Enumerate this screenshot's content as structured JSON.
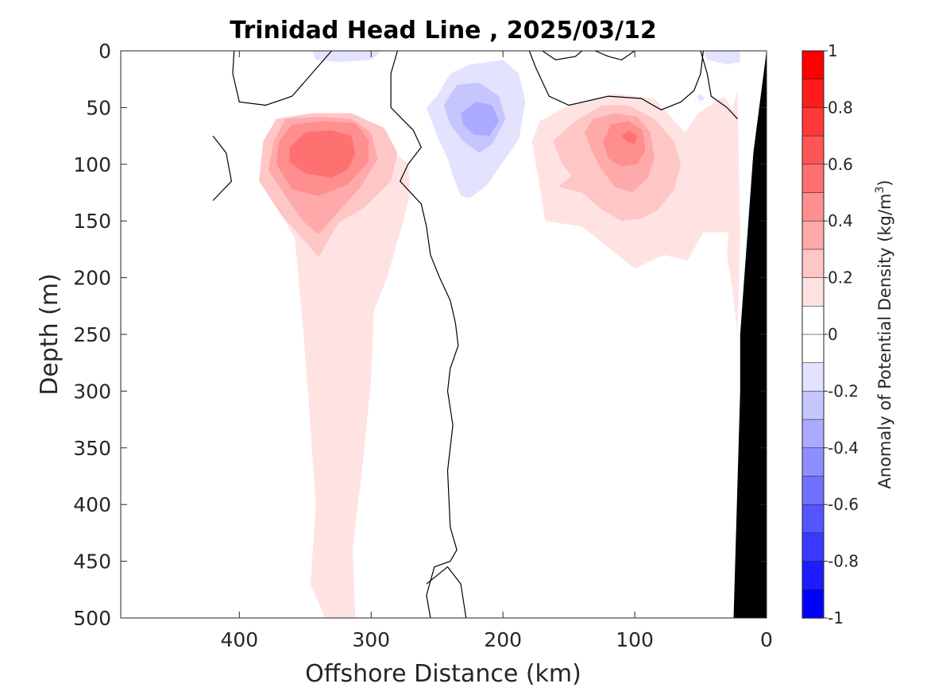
{
  "chart_data": {
    "type": "heatmap",
    "title": "Trinidad Head Line , 2025/03/12",
    "xlabel": "Offshore Distance (km)",
    "ylabel": "Depth (m)",
    "xlim": [
      490,
      0
    ],
    "ylim": [
      0,
      500
    ],
    "x_ticks": [
      400,
      300,
      200,
      100,
      0
    ],
    "y_ticks": [
      0,
      50,
      100,
      150,
      200,
      250,
      300,
      350,
      400,
      450,
      500
    ],
    "grid": false,
    "colorbar": {
      "label_main": "Anomaly of Potential Density (kg/m",
      "label_sup": "3",
      "label_close": ")",
      "range": [
        -1,
        1
      ],
      "ticks": [
        1,
        0.8,
        0.6,
        0.4,
        0.2,
        0,
        -0.2,
        -0.4,
        -0.6,
        -0.8,
        -1
      ],
      "levels": [
        {
          "lo": 0.9,
          "hi": 1.0,
          "color": "#ff0000"
        },
        {
          "lo": 0.8,
          "hi": 0.9,
          "color": "#ff1c1c"
        },
        {
          "lo": 0.7,
          "hi": 0.8,
          "color": "#ff3939"
        },
        {
          "lo": 0.6,
          "hi": 0.7,
          "color": "#ff5555"
        },
        {
          "lo": 0.5,
          "hi": 0.6,
          "color": "#ff7171"
        },
        {
          "lo": 0.4,
          "hi": 0.5,
          "color": "#ff8e8e"
        },
        {
          "lo": 0.3,
          "hi": 0.4,
          "color": "#ffaaaa"
        },
        {
          "lo": 0.2,
          "hi": 0.3,
          "color": "#ffc6c6"
        },
        {
          "lo": 0.1,
          "hi": 0.2,
          "color": "#ffe3e3"
        },
        {
          "lo": 0.0,
          "hi": 0.1,
          "color": "#ffffff"
        },
        {
          "lo": -0.1,
          "hi": 0.0,
          "color": "#ffffff"
        },
        {
          "lo": -0.2,
          "hi": -0.1,
          "color": "#e3e3ff"
        },
        {
          "lo": -0.3,
          "hi": -0.2,
          "color": "#c6c6ff"
        },
        {
          "lo": -0.4,
          "hi": -0.3,
          "color": "#aaaaff"
        },
        {
          "lo": -0.5,
          "hi": -0.4,
          "color": "#8e8eff"
        },
        {
          "lo": -0.6,
          "hi": -0.5,
          "color": "#7171ff"
        },
        {
          "lo": -0.7,
          "hi": -0.6,
          "color": "#5555ff"
        },
        {
          "lo": -0.8,
          "hi": -0.7,
          "color": "#3939ff"
        },
        {
          "lo": -0.9,
          "hi": -0.8,
          "color": "#1c1cff"
        },
        {
          "lo": -1.0,
          "hi": -0.9,
          "color": "#0000ff"
        }
      ]
    },
    "contour_regions": [
      {
        "value": 0.15,
        "points": [
          [
            375,
            130
          ],
          [
            358,
            165
          ],
          [
            352,
            240
          ],
          [
            348,
            300
          ],
          [
            342,
            400
          ],
          [
            346,
            470
          ],
          [
            335,
            500
          ],
          [
            312,
            500
          ],
          [
            314,
            440
          ],
          [
            306,
            360
          ],
          [
            300,
            290
          ],
          [
            298,
            230
          ],
          [
            288,
            200
          ],
          [
            278,
            160
          ],
          [
            270,
            125
          ],
          [
            272,
            100
          ],
          [
            292,
            80
          ],
          [
            315,
            60
          ],
          [
            345,
            60
          ],
          [
            368,
            80
          ],
          [
            378,
            100
          ]
        ]
      },
      {
        "value": 0.25,
        "points": [
          [
            382,
            80
          ],
          [
            372,
            60
          ],
          [
            345,
            55
          ],
          [
            315,
            55
          ],
          [
            290,
            68
          ],
          [
            280,
            90
          ],
          [
            285,
            115
          ],
          [
            305,
            138
          ],
          [
            325,
            152
          ],
          [
            340,
            182
          ],
          [
            350,
            168
          ],
          [
            368,
            145
          ],
          [
            385,
            115
          ]
        ]
      },
      {
        "value": 0.35,
        "points": [
          [
            374,
            80
          ],
          [
            365,
            60
          ],
          [
            340,
            58
          ],
          [
            315,
            60
          ],
          [
            300,
            72
          ],
          [
            295,
            95
          ],
          [
            308,
            120
          ],
          [
            325,
            142
          ],
          [
            340,
            162
          ],
          [
            352,
            150
          ],
          [
            365,
            128
          ],
          [
            378,
            105
          ]
        ]
      },
      {
        "value": 0.45,
        "points": [
          [
            370,
            80
          ],
          [
            360,
            65
          ],
          [
            335,
            62
          ],
          [
            312,
            64
          ],
          [
            302,
            78
          ],
          [
            302,
            98
          ],
          [
            318,
            118
          ],
          [
            340,
            128
          ],
          [
            360,
            122
          ],
          [
            372,
            100
          ]
        ]
      },
      {
        "value": 0.55,
        "points": [
          [
            362,
            85
          ],
          [
            350,
            72
          ],
          [
            330,
            70
          ],
          [
            315,
            75
          ],
          [
            312,
            90
          ],
          [
            318,
            105
          ],
          [
            330,
            112
          ],
          [
            350,
            108
          ],
          [
            362,
            98
          ]
        ]
      },
      {
        "value": 0.15,
        "points": [
          [
            178,
            80
          ],
          [
            172,
            120
          ],
          [
            168,
            150
          ],
          [
            140,
            155
          ],
          [
            115,
            178
          ],
          [
            100,
            192
          ],
          [
            78,
            180
          ],
          [
            60,
            185
          ],
          [
            48,
            160
          ],
          [
            30,
            160
          ],
          [
            22,
            150
          ],
          [
            22,
            60
          ],
          [
            32,
            40
          ],
          [
            52,
            55
          ],
          [
            62,
            72
          ],
          [
            85,
            42
          ],
          [
            115,
            38
          ],
          [
            150,
            48
          ],
          [
            172,
            62
          ]
        ]
      },
      {
        "value": 0.25,
        "points": [
          [
            162,
            80
          ],
          [
            155,
            100
          ],
          [
            148,
            110
          ],
          [
            158,
            120
          ],
          [
            140,
            125
          ],
          [
            125,
            140
          ],
          [
            110,
            150
          ],
          [
            95,
            148
          ],
          [
            82,
            140
          ],
          [
            70,
            122
          ],
          [
            65,
            100
          ],
          [
            70,
            80
          ],
          [
            85,
            60
          ],
          [
            105,
            48
          ],
          [
            125,
            48
          ],
          [
            145,
            62
          ],
          [
            158,
            75
          ]
        ]
      },
      {
        "value": 0.35,
        "points": [
          [
            138,
            72
          ],
          [
            132,
            60
          ],
          [
            115,
            55
          ],
          [
            98,
            58
          ],
          [
            88,
            72
          ],
          [
            85,
            95
          ],
          [
            90,
            112
          ],
          [
            102,
            125
          ],
          [
            115,
            120
          ],
          [
            125,
            105
          ],
          [
            132,
            90
          ]
        ]
      },
      {
        "value": 0.45,
        "points": [
          [
            124,
            80
          ],
          [
            118,
            65
          ],
          [
            105,
            62
          ],
          [
            94,
            70
          ],
          [
            92,
            88
          ],
          [
            98,
            100
          ],
          [
            110,
            102
          ],
          [
            120,
            95
          ]
        ]
      },
      {
        "value": 0.55,
        "points": [
          [
            110,
            75
          ],
          [
            104,
            70
          ],
          [
            98,
            75
          ],
          [
            100,
            82
          ],
          [
            106,
            80
          ]
        ]
      },
      {
        "value": 0.15,
        "points": [
          [
            28,
            140
          ],
          [
            32,
            100
          ],
          [
            28,
            60
          ],
          [
            22,
            35
          ],
          [
            20,
            160
          ],
          [
            22,
            250
          ],
          [
            26,
            210
          ],
          [
            30,
            180
          ]
        ]
      },
      {
        "value": -0.15,
        "points": [
          [
            250,
            40
          ],
          [
            240,
            20
          ],
          [
            225,
            12
          ],
          [
            200,
            8
          ],
          [
            188,
            20
          ],
          [
            183,
            45
          ],
          [
            188,
            78
          ],
          [
            200,
            98
          ],
          [
            212,
            118
          ],
          [
            225,
            130
          ],
          [
            232,
            128
          ],
          [
            238,
            110
          ],
          [
            242,
            95
          ],
          [
            250,
            75
          ],
          [
            258,
            50
          ]
        ]
      },
      {
        "value": -0.25,
        "points": [
          [
            245,
            48
          ],
          [
            235,
            30
          ],
          [
            218,
            28
          ],
          [
            203,
            40
          ],
          [
            198,
            60
          ],
          [
            208,
            82
          ],
          [
            218,
            90
          ],
          [
            230,
            80
          ],
          [
            240,
            65
          ]
        ]
      },
      {
        "value": -0.35,
        "points": [
          [
            232,
            55
          ],
          [
            220,
            45
          ],
          [
            208,
            48
          ],
          [
            203,
            62
          ],
          [
            210,
            75
          ],
          [
            222,
            74
          ],
          [
            230,
            65
          ]
        ]
      },
      {
        "value": -0.15,
        "points": [
          [
            345,
            0
          ],
          [
            342,
            8
          ],
          [
            325,
            10
          ],
          [
            300,
            8
          ],
          [
            292,
            0
          ]
        ]
      },
      {
        "value": -0.2,
        "points": [
          [
            48,
            0
          ],
          [
            45,
            8
          ],
          [
            30,
            12
          ],
          [
            20,
            10
          ],
          [
            20,
            0
          ]
        ]
      },
      {
        "value": -0.15,
        "points": [
          [
            53,
            40
          ],
          [
            50,
            45
          ],
          [
            47,
            42
          ],
          [
            50,
            38
          ]
        ]
      }
    ],
    "zero_contours": [
      [
        [
          404,
          0
        ],
        [
          405,
          20
        ],
        [
          400,
          45
        ],
        [
          380,
          48
        ],
        [
          360,
          40
        ],
        [
          330,
          0
        ]
      ],
      [
        [
          420,
          75
        ],
        [
          410,
          90
        ],
        [
          406,
          115
        ],
        [
          420,
          132
        ]
      ],
      [
        [
          280,
          0
        ],
        [
          285,
          20
        ],
        [
          285,
          50
        ],
        [
          268,
          70
        ],
        [
          262,
          85
        ],
        [
          272,
          100
        ],
        [
          278,
          115
        ],
        [
          262,
          135
        ],
        [
          258,
          155
        ],
        [
          255,
          180
        ],
        [
          248,
          200
        ],
        [
          240,
          220
        ],
        [
          236,
          240
        ],
        [
          234,
          260
        ],
        [
          240,
          280
        ],
        [
          242,
          300
        ],
        [
          238,
          330
        ],
        [
          242,
          370
        ],
        [
          240,
          420
        ],
        [
          235,
          440
        ],
        [
          240,
          450
        ],
        [
          252,
          455
        ],
        [
          258,
          480
        ],
        [
          255,
          500
        ]
      ],
      [
        [
          228,
          500
        ],
        [
          232,
          470
        ],
        [
          242,
          455
        ],
        [
          258,
          470
        ]
      ],
      [
        [
          180,
          0
        ],
        [
          175,
          15
        ],
        [
          165,
          40
        ],
        [
          150,
          48
        ],
        [
          120,
          40
        ],
        [
          95,
          42
        ],
        [
          80,
          52
        ],
        [
          65,
          45
        ],
        [
          55,
          35
        ],
        [
          50,
          20
        ],
        [
          48,
          0
        ]
      ],
      [
        [
          170,
          0
        ],
        [
          160,
          8
        ],
        [
          145,
          5
        ],
        [
          140,
          0
        ]
      ],
      [
        [
          130,
          0
        ],
        [
          120,
          5
        ],
        [
          110,
          8
        ],
        [
          100,
          0
        ]
      ],
      [
        [
          50,
          0
        ],
        [
          45,
          20
        ],
        [
          42,
          40
        ],
        [
          30,
          50
        ],
        [
          22,
          60
        ]
      ]
    ],
    "seafloor": {
      "color": "#000000",
      "points": [
        [
          25,
          500
        ],
        [
          20,
          300
        ],
        [
          20,
          250
        ],
        [
          10,
          90
        ],
        [
          0,
          0
        ],
        [
          0,
          500
        ]
      ]
    }
  }
}
